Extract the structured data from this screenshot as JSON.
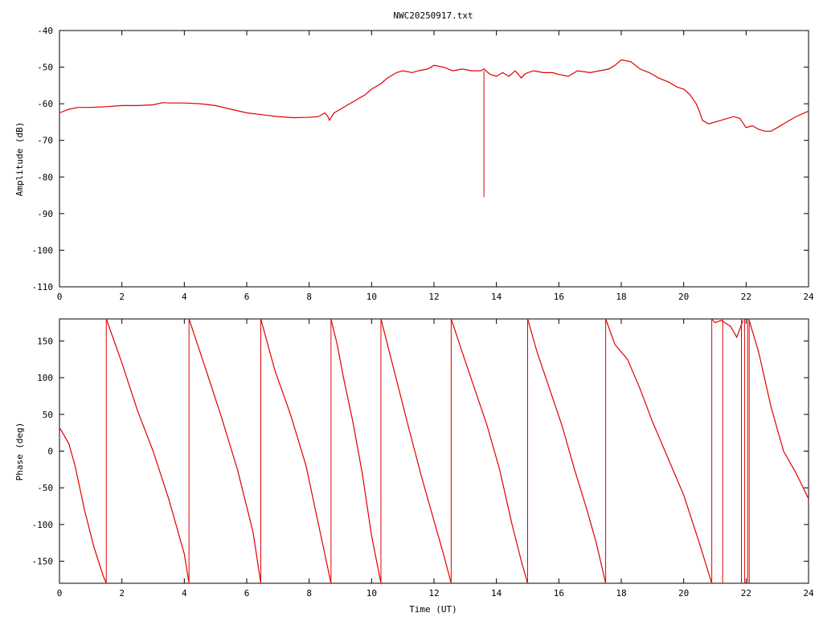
{
  "title": "NWC20250917.txt",
  "line_color": "#e00000",
  "chart_data": [
    {
      "type": "line",
      "title": "NWC20250917.txt",
      "xlabel": "",
      "ylabel": "Amplitude (dB)",
      "xlim": [
        0,
        24
      ],
      "ylim": [
        -110,
        -40
      ],
      "xticks": [
        "0",
        "2",
        "4",
        "6",
        "8",
        "10",
        "12",
        "14",
        "16",
        "18",
        "20",
        "22",
        "24"
      ],
      "yticks": [
        "-110",
        "-100",
        "-90",
        "-80",
        "-70",
        "-60",
        "-50",
        "-40"
      ],
      "grid": false,
      "series": [
        {
          "x": [
            0,
            0.3,
            0.6,
            1.0,
            1.5,
            2.0,
            2.5,
            3.0,
            3.3,
            3.6,
            4.0,
            4.5,
            5.0,
            5.5,
            6.0,
            6.5,
            7.0,
            7.5,
            8.0,
            8.3,
            8.5,
            8.6,
            8.65,
            8.8,
            9.0,
            9.2,
            9.5,
            9.8,
            10.0,
            10.3,
            10.5,
            10.8,
            11.0,
            11.3,
            11.5,
            11.8,
            12.0,
            12.3,
            12.6,
            12.9,
            13.2,
            13.5,
            13.6,
            13.8,
            14.0,
            14.2,
            14.4,
            14.6,
            14.8,
            14.9,
            15.0,
            15.2,
            15.5,
            15.8,
            16.0,
            16.3,
            16.6,
            17.0,
            17.3,
            17.6,
            17.8,
            18.0,
            18.3,
            18.6,
            18.9,
            19.2,
            19.5,
            19.8,
            20.0,
            20.2,
            20.4,
            20.5,
            20.6,
            20.8,
            21.0,
            21.2,
            21.4,
            21.6,
            21.8,
            22.0,
            22.2,
            22.4,
            22.6,
            22.8,
            23.0,
            23.3,
            23.6,
            24.0
          ],
          "y": [
            -62.5,
            -61.5,
            -61.0,
            -61.0,
            -60.8,
            -60.5,
            -60.5,
            -60.3,
            -59.7,
            -59.8,
            -59.8,
            -60.0,
            -60.5,
            -61.5,
            -62.5,
            -63.0,
            -63.5,
            -63.8,
            -63.7,
            -63.5,
            -62.5,
            -63.5,
            -64.5,
            -62.5,
            -61.5,
            -60.5,
            -59.0,
            -57.5,
            -56.0,
            -54.5,
            -53.0,
            -51.5,
            -51.0,
            -51.5,
            -51.0,
            -50.5,
            -49.5,
            -50.0,
            -51.0,
            -50.5,
            -51.0,
            -51.0,
            -50.5,
            -52.0,
            -52.5,
            -51.5,
            -52.5,
            -51.0,
            -53.0,
            -52.0,
            -51.5,
            -51.0,
            -51.5,
            -51.5,
            -52.0,
            -52.5,
            -51.0,
            -51.5,
            -51.0,
            -50.5,
            -49.5,
            -48.0,
            -48.5,
            -50.5,
            -51.5,
            -53.0,
            -54.0,
            -55.5,
            -56.0,
            -57.5,
            -60.0,
            -62.0,
            -64.5,
            -65.5,
            -65.0,
            -64.5,
            -64.0,
            -63.5,
            -64.0,
            -66.5,
            -66.0,
            -67.0,
            -67.5,
            -67.5,
            -66.5,
            -65.0,
            -63.5,
            -62.0
          ]
        }
      ],
      "spikes": [
        {
          "x": 13.6,
          "y_from": -51.0,
          "y_to": -85.5
        }
      ]
    },
    {
      "type": "line",
      "title": "",
      "xlabel": "Time (UT)",
      "ylabel": "Phase (deg)",
      "xlim": [
        0,
        24
      ],
      "ylim": [
        -180,
        180
      ],
      "xticks": [
        "0",
        "2",
        "4",
        "6",
        "8",
        "10",
        "12",
        "14",
        "16",
        "18",
        "20",
        "22",
        "24"
      ],
      "yticks": [
        "-150",
        "-100",
        "-50",
        "0",
        "50",
        "100",
        "150"
      ],
      "grid": false,
      "segments": [
        {
          "x": [
            0,
            0.1,
            0.3,
            0.5,
            0.8,
            1.1,
            1.4,
            1.5
          ],
          "y": [
            32,
            25,
            10,
            -20,
            -80,
            -130,
            -170,
            -180
          ]
        },
        {
          "x": [
            1.5,
            2.0,
            2.5,
            3.0,
            3.5,
            4.0,
            4.15
          ],
          "y": [
            180,
            120,
            55,
            0,
            -65,
            -140,
            -180
          ]
        },
        {
          "x": [
            4.15,
            4.7,
            5.2,
            5.7,
            6.2,
            6.45
          ],
          "y": [
            180,
            110,
            45,
            -25,
            -110,
            -180
          ]
        },
        {
          "x": [
            6.45,
            6.9,
            7.4,
            7.9,
            8.3,
            8.5,
            8.7
          ],
          "y": [
            180,
            110,
            50,
            -20,
            -100,
            -140,
            -180
          ]
        },
        {
          "x": [
            8.7,
            8.9,
            9.1,
            9.4,
            9.7,
            10.0,
            10.3
          ],
          "y": [
            180,
            145,
            100,
            40,
            -30,
            -115,
            -180
          ]
        },
        {
          "x": [
            10.3,
            10.6,
            10.9,
            11.2,
            11.6,
            12.0,
            12.3,
            12.55
          ],
          "y": [
            180,
            130,
            80,
            30,
            -35,
            -95,
            -140,
            -180
          ]
        },
        {
          "x": [
            12.55,
            12.9,
            13.3,
            13.7,
            14.1,
            14.5,
            14.8,
            15.0
          ],
          "y": [
            180,
            135,
            85,
            35,
            -25,
            -100,
            -150,
            -180
          ]
        },
        {
          "x": [
            15.0,
            15.3,
            15.7,
            16.1,
            16.5,
            16.9,
            17.2,
            17.5
          ],
          "y": [
            180,
            135,
            85,
            35,
            -25,
            -80,
            -125,
            -180
          ]
        },
        {
          "x": [
            17.5,
            17.8,
            18.2,
            18.6,
            19.0,
            19.5,
            20.0,
            20.5,
            20.9
          ],
          "y": [
            180,
            145,
            125,
            85,
            40,
            -10,
            -60,
            -125,
            -180
          ]
        },
        {
          "x": [
            20.9,
            21.0,
            21.2,
            21.5,
            21.7,
            21.9
          ],
          "y": [
            180,
            175,
            178,
            170,
            155,
            178
          ]
        },
        {
          "x": [
            22.1,
            22.4,
            22.8,
            23.2,
            23.6,
            24.0
          ],
          "y": [
            178,
            135,
            60,
            0,
            -30,
            -65
          ]
        }
      ],
      "wraps": [
        1.5,
        4.15,
        6.45,
        8.7,
        10.3,
        12.55,
        15.0,
        17.5,
        20.9,
        21.25,
        21.85,
        21.95,
        22.05,
        22.1
      ]
    }
  ]
}
